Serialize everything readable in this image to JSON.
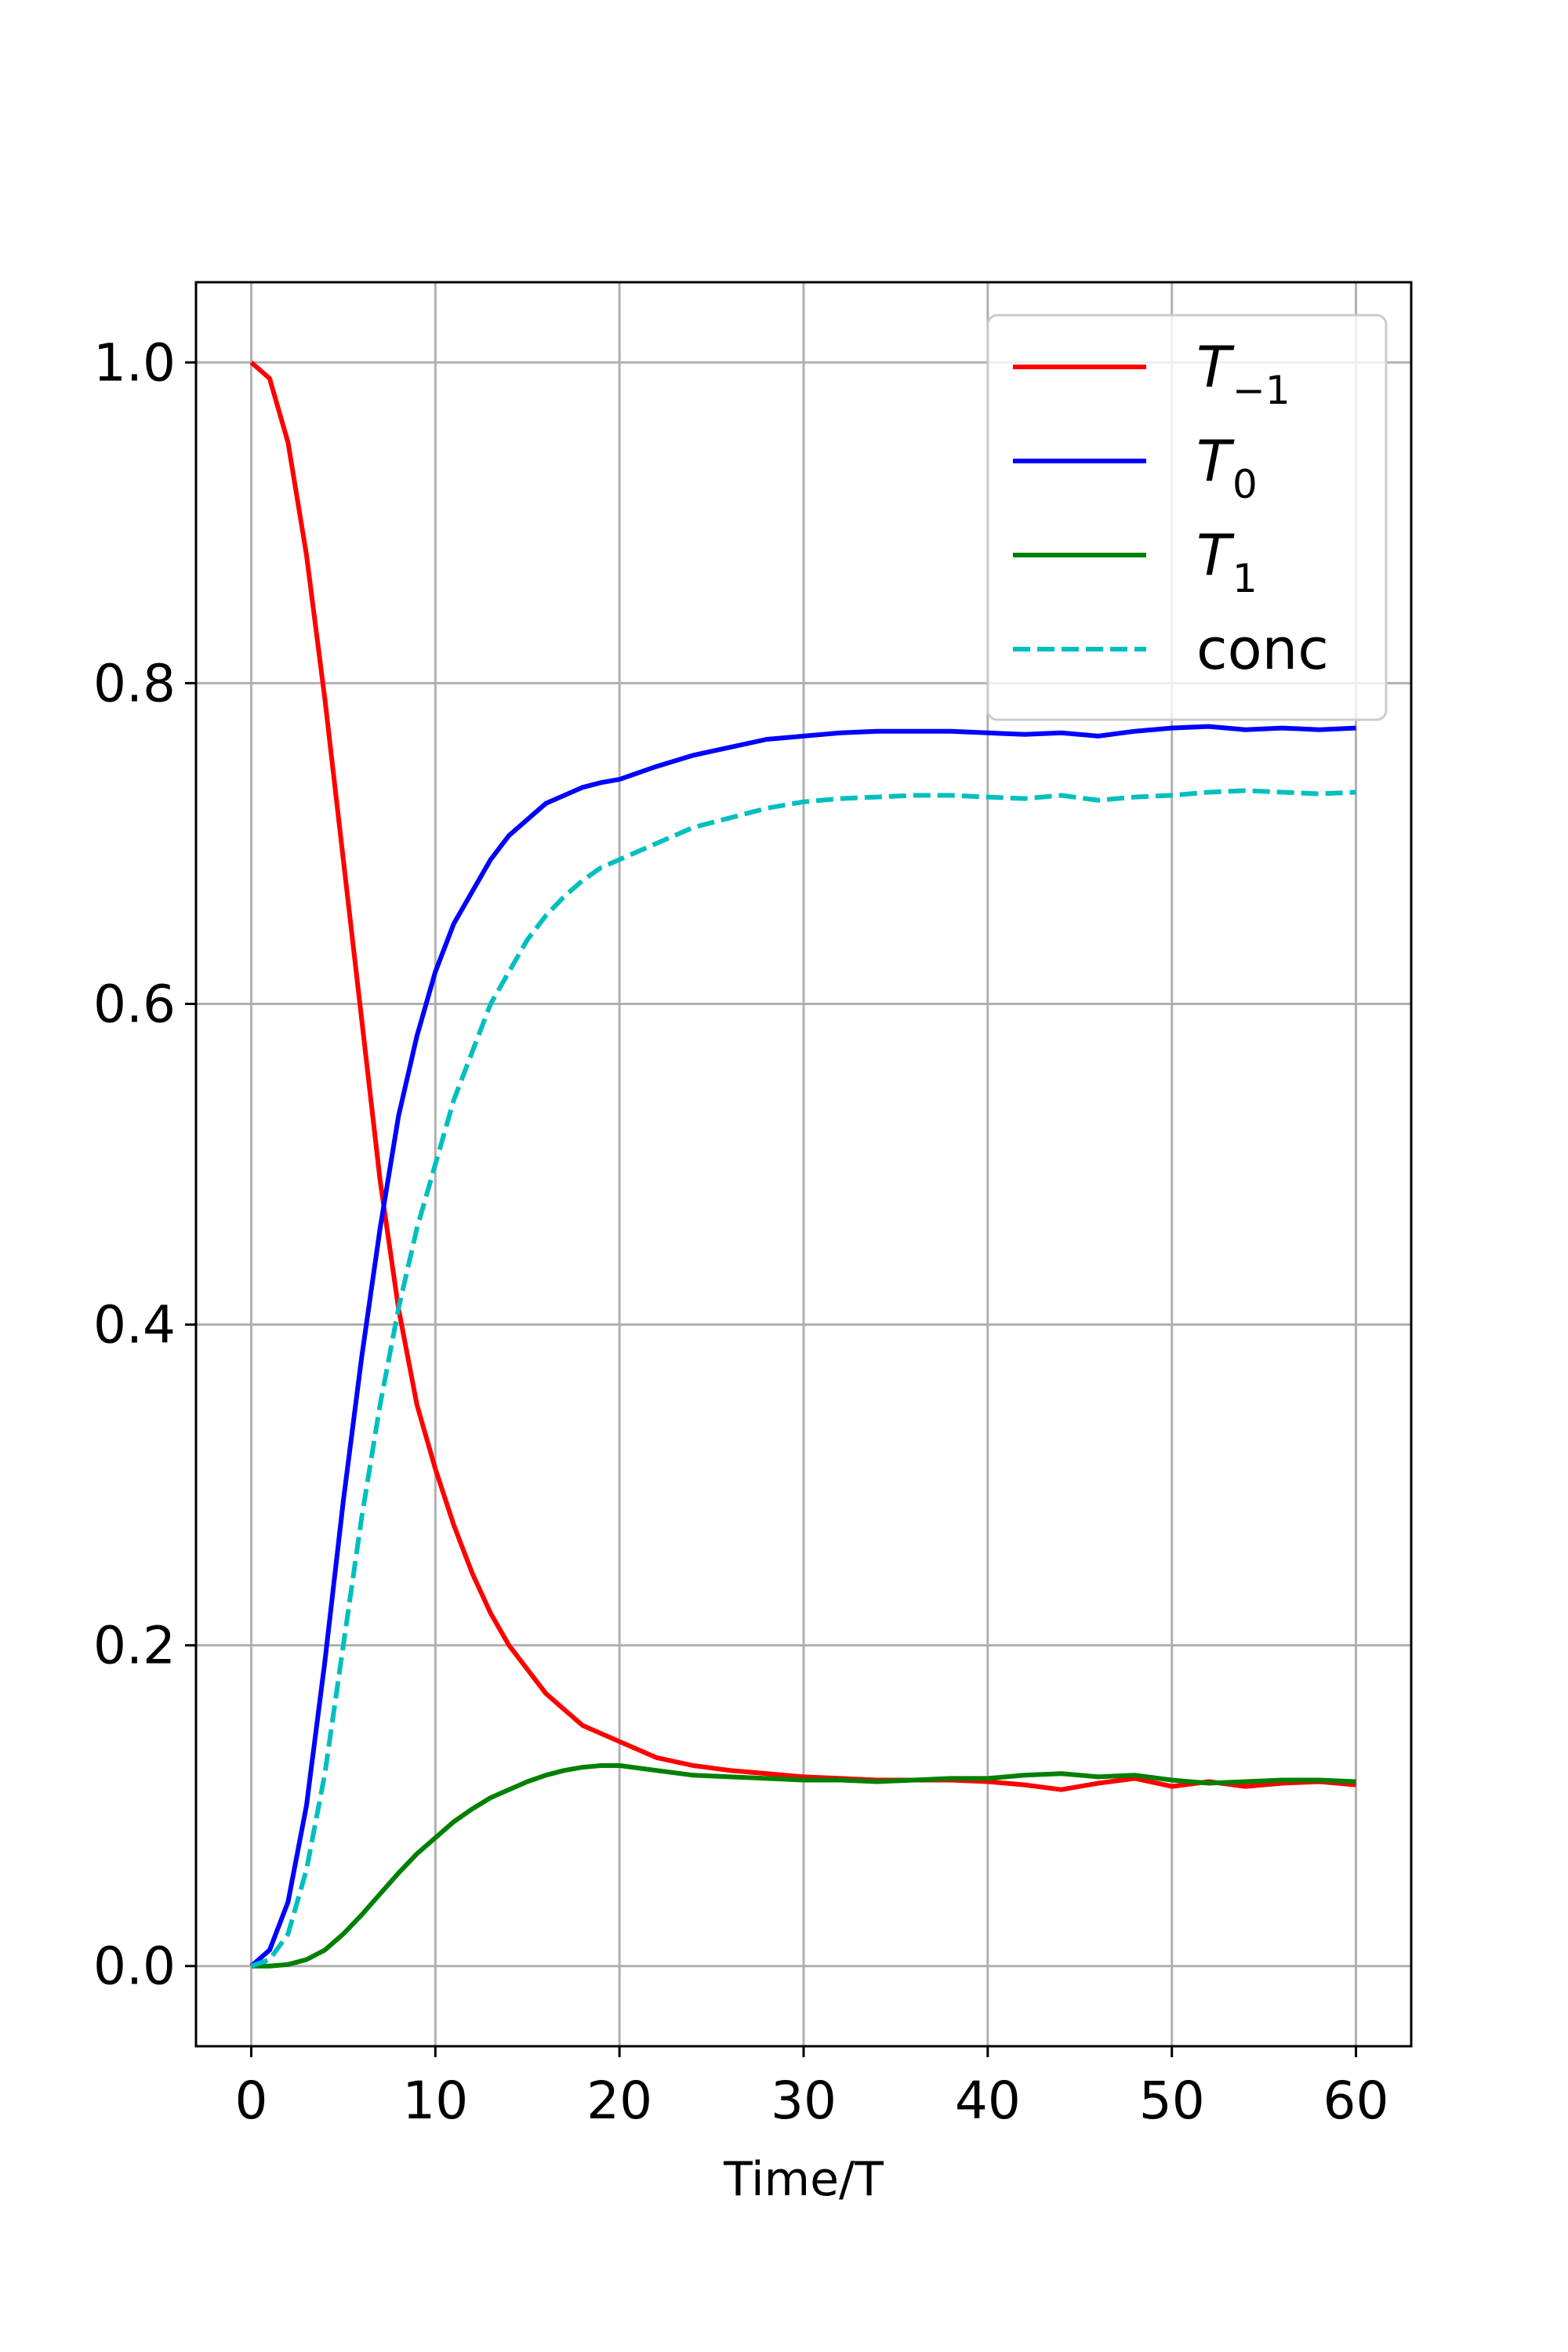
{
  "chart_data": {
    "type": "line",
    "title": "",
    "xlabel": "Time/T",
    "ylabel": "",
    "xlim": [
      -3,
      63
    ],
    "ylim": [
      -0.05,
      1.05
    ],
    "xticks": [
      0,
      10,
      20,
      30,
      40,
      50,
      60
    ],
    "xtick_labels": [
      "0",
      "10",
      "20",
      "30",
      "40",
      "50",
      "60"
    ],
    "yticks": [
      0.0,
      0.2,
      0.4,
      0.6,
      0.8,
      1.0
    ],
    "ytick_labels": [
      "0.0",
      "0.2",
      "0.4",
      "0.6",
      "0.8",
      "1.0"
    ],
    "grid": true,
    "legend": "upper right",
    "series": [
      {
        "name": "T",
        "name_sub": "−1",
        "color": "#ff0000",
        "dash": "solid",
        "x": [
          0,
          1,
          2,
          3,
          4,
          5,
          6,
          7,
          8,
          9,
          10,
          11,
          12,
          13,
          14,
          15,
          16,
          17,
          18,
          19,
          20,
          22,
          24,
          26,
          28,
          30,
          32,
          34,
          36,
          38,
          40,
          42,
          44,
          46,
          48,
          50,
          52,
          54,
          56,
          58,
          60
        ],
        "y": [
          1.0,
          0.99,
          0.95,
          0.88,
          0.79,
          0.69,
          0.59,
          0.49,
          0.41,
          0.35,
          0.31,
          0.275,
          0.245,
          0.22,
          0.2,
          0.185,
          0.17,
          0.16,
          0.15,
          0.145,
          0.14,
          0.13,
          0.125,
          0.122,
          0.12,
          0.118,
          0.117,
          0.116,
          0.116,
          0.116,
          0.115,
          0.113,
          0.11,
          0.114,
          0.117,
          0.112,
          0.115,
          0.112,
          0.114,
          0.115,
          0.113
        ]
      },
      {
        "name": "T",
        "name_sub": "0",
        "color": "#0000ff",
        "dash": "solid",
        "x": [
          0,
          1,
          2,
          3,
          4,
          5,
          6,
          7,
          8,
          9,
          10,
          11,
          12,
          13,
          14,
          15,
          16,
          17,
          18,
          19,
          20,
          22,
          24,
          26,
          28,
          30,
          32,
          34,
          36,
          38,
          40,
          42,
          44,
          46,
          48,
          50,
          52,
          54,
          56,
          58,
          60
        ],
        "y": [
          0.0,
          0.01,
          0.04,
          0.1,
          0.19,
          0.29,
          0.38,
          0.46,
          0.53,
          0.58,
          0.62,
          0.65,
          0.67,
          0.69,
          0.705,
          0.715,
          0.725,
          0.73,
          0.735,
          0.738,
          0.74,
          0.748,
          0.755,
          0.76,
          0.765,
          0.767,
          0.769,
          0.77,
          0.77,
          0.77,
          0.769,
          0.768,
          0.769,
          0.767,
          0.77,
          0.772,
          0.773,
          0.771,
          0.772,
          0.771,
          0.772
        ]
      },
      {
        "name": "T",
        "name_sub": "1",
        "color": "#008000",
        "dash": "solid",
        "x": [
          0,
          1,
          2,
          3,
          4,
          5,
          6,
          7,
          8,
          9,
          10,
          11,
          12,
          13,
          14,
          15,
          16,
          17,
          18,
          19,
          20,
          22,
          24,
          26,
          28,
          30,
          32,
          34,
          36,
          38,
          40,
          42,
          44,
          46,
          48,
          50,
          52,
          54,
          56,
          58,
          60
        ],
        "y": [
          0.0,
          0.0,
          0.001,
          0.004,
          0.01,
          0.02,
          0.032,
          0.045,
          0.058,
          0.07,
          0.08,
          0.09,
          0.098,
          0.105,
          0.11,
          0.115,
          0.119,
          0.122,
          0.124,
          0.125,
          0.125,
          0.122,
          0.119,
          0.118,
          0.117,
          0.116,
          0.116,
          0.115,
          0.116,
          0.117,
          0.117,
          0.119,
          0.12,
          0.118,
          0.119,
          0.116,
          0.114,
          0.115,
          0.116,
          0.116,
          0.115
        ]
      },
      {
        "name": "conc",
        "name_sub": "",
        "color": "#00bfbf",
        "dash": "dashed",
        "x": [
          0,
          1,
          2,
          3,
          4,
          5,
          6,
          7,
          8,
          9,
          10,
          11,
          12,
          13,
          14,
          15,
          16,
          17,
          18,
          19,
          20,
          22,
          24,
          26,
          28,
          30,
          32,
          34,
          36,
          38,
          40,
          42,
          44,
          46,
          48,
          50,
          52,
          54,
          56,
          58,
          60
        ],
        "y": [
          0.0,
          0.004,
          0.02,
          0.06,
          0.12,
          0.2,
          0.28,
          0.35,
          0.41,
          0.46,
          0.5,
          0.54,
          0.57,
          0.6,
          0.62,
          0.64,
          0.655,
          0.667,
          0.677,
          0.685,
          0.69,
          0.7,
          0.71,
          0.716,
          0.722,
          0.726,
          0.728,
          0.729,
          0.73,
          0.73,
          0.729,
          0.728,
          0.73,
          0.727,
          0.729,
          0.73,
          0.732,
          0.733,
          0.732,
          0.731,
          0.732
        ]
      }
    ]
  }
}
